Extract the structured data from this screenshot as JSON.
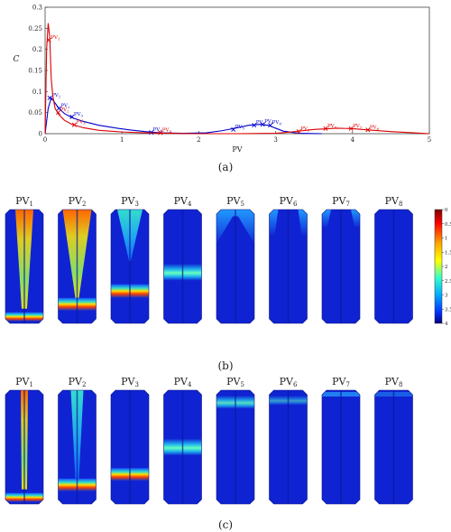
{
  "chart_data": [
    {
      "type": "line",
      "panel_label": "(a)",
      "xlabel": "PV",
      "ylabel": "C",
      "xlim": [
        0,
        5
      ],
      "ylim": [
        0,
        0.3
      ],
      "xticks": [
        "0",
        "1",
        "2",
        "3",
        "4",
        "5"
      ],
      "yticks": [
        "0",
        "0.05",
        "0.1",
        "0.15",
        "0.2",
        "0.25",
        "0.3"
      ],
      "grid": false,
      "legend": "none",
      "series": [
        {
          "color": "#0000cc",
          "x": [
            0.0,
            0.04,
            0.08,
            0.12,
            0.18,
            0.25,
            0.35,
            0.5,
            0.7,
            0.9,
            1.1,
            1.3,
            1.5,
            1.8,
            2.1,
            2.3,
            2.5,
            2.65,
            2.8,
            2.9,
            3.0,
            3.1,
            3.3,
            3.6
          ],
          "y": [
            0.0,
            0.06,
            0.085,
            0.075,
            0.06,
            0.048,
            0.038,
            0.029,
            0.02,
            0.014,
            0.009,
            0.005,
            0.002,
            0.001,
            0.002,
            0.007,
            0.014,
            0.02,
            0.022,
            0.02,
            0.013,
            0.006,
            0.001,
            0.0
          ],
          "markers": [
            {
              "label": "PV",
              "sub": "1",
              "x": 0.06,
              "y": 0.085
            },
            {
              "label": "PV",
              "sub": "2",
              "x": 0.18,
              "y": 0.06
            },
            {
              "label": "PV",
              "sub": "3",
              "x": 0.35,
              "y": 0.04
            },
            {
              "label": "PV",
              "sub": "4",
              "x": 1.38,
              "y": 0.003
            },
            {
              "label": "PV",
              "sub": "5",
              "x": 2.45,
              "y": 0.01
            },
            {
              "label": "PV",
              "sub": "6",
              "x": 2.72,
              "y": 0.02
            },
            {
              "label": "PV",
              "sub": "7",
              "x": 2.83,
              "y": 0.022
            },
            {
              "label": "PV",
              "sub": "8",
              "x": 2.93,
              "y": 0.02
            }
          ]
        },
        {
          "color": "#dd0000",
          "x": [
            0.0,
            0.02,
            0.04,
            0.06,
            0.08,
            0.1,
            0.13,
            0.18,
            0.25,
            0.35,
            0.5,
            0.7,
            1.0,
            1.3,
            1.6,
            2.0,
            2.5,
            3.0,
            3.2,
            3.5,
            3.8,
            4.0,
            4.2,
            4.5,
            4.8,
            5.0
          ],
          "y": [
            0.0,
            0.2,
            0.262,
            0.23,
            0.13,
            0.09,
            0.06,
            0.045,
            0.032,
            0.022,
            0.014,
            0.008,
            0.004,
            0.002,
            0.001,
            0.0,
            0.0,
            0.001,
            0.004,
            0.01,
            0.013,
            0.012,
            0.009,
            0.005,
            0.002,
            0.0
          ],
          "markers": [
            {
              "label": "PV",
              "sub": "1",
              "x": 0.05,
              "y": 0.222
            },
            {
              "label": "PV",
              "sub": "2",
              "x": 0.17,
              "y": 0.05
            },
            {
              "label": "PV",
              "sub": "3",
              "x": 0.38,
              "y": 0.021
            },
            {
              "label": "PV",
              "sub": "4",
              "x": 1.5,
              "y": 0.002
            },
            {
              "label": "PV",
              "sub": "5",
              "x": 3.3,
              "y": 0.005
            },
            {
              "label": "PV",
              "sub": "6",
              "x": 3.65,
              "y": 0.012
            },
            {
              "label": "PV",
              "sub": "7",
              "x": 3.98,
              "y": 0.012
            },
            {
              "label": "PV",
              "sub": "8",
              "x": 4.2,
              "y": 0.009
            }
          ]
        }
      ]
    },
    {
      "type": "heatmap",
      "panel_label": "(b)",
      "colorbar_ticks": [
        "0",
        "0.5",
        "1",
        "1.5",
        "2",
        "2.5",
        "3",
        "3.5",
        "4"
      ],
      "colorbar_range": [
        0,
        4
      ],
      "panels": [
        {
          "label": "PV",
          "sub": "1",
          "pattern": "full_jet",
          "band_level": 0.95
        },
        {
          "label": "PV",
          "sub": "2",
          "pattern": "wide_jet",
          "band_level": 0.84
        },
        {
          "label": "PV",
          "sub": "3",
          "pattern": "top_jet",
          "band_level": 0.72
        },
        {
          "label": "PV",
          "sub": "4",
          "pattern": "band",
          "band_level": 0.55
        },
        {
          "label": "PV",
          "sub": "5",
          "pattern": "top_spread",
          "band_level": 0.0
        },
        {
          "label": "PV",
          "sub": "6",
          "pattern": "top_edges",
          "band_level": 0.0
        },
        {
          "label": "PV",
          "sub": "7",
          "pattern": "top_edges_faint",
          "band_level": 0.0
        },
        {
          "label": "PV",
          "sub": "8",
          "pattern": "faint",
          "band_level": 0.0
        }
      ]
    },
    {
      "type": "heatmap",
      "panel_label": "(c)",
      "panels": [
        {
          "label": "PV",
          "sub": "1",
          "pattern": "thin_jet",
          "band_level": 0.95
        },
        {
          "label": "PV",
          "sub": "2",
          "pattern": "thin_wide",
          "band_level": 0.84
        },
        {
          "label": "PV",
          "sub": "3",
          "pattern": "low_band",
          "band_level": 0.74
        },
        {
          "label": "PV",
          "sub": "4",
          "pattern": "band",
          "band_level": 0.5
        },
        {
          "label": "PV",
          "sub": "5",
          "pattern": "top_band",
          "band_level": 0.1
        },
        {
          "label": "PV",
          "sub": "6",
          "pattern": "top_band_faint",
          "band_level": 0.1
        },
        {
          "label": "PV",
          "sub": "7",
          "pattern": "top_thin",
          "band_level": 0.03
        },
        {
          "label": "PV",
          "sub": "8",
          "pattern": "top_thin_faint",
          "band_level": 0.02
        }
      ]
    }
  ]
}
